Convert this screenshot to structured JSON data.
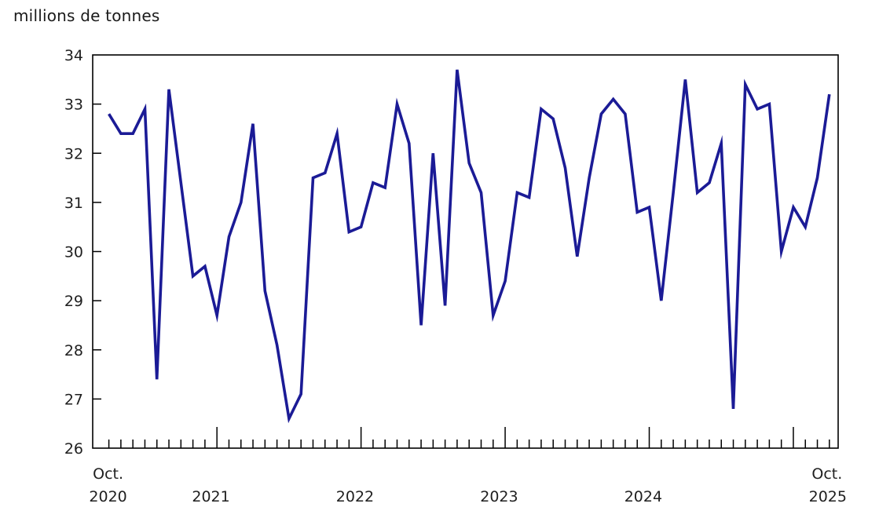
{
  "page": {
    "title": "millions de tonnes"
  },
  "chart_data": {
    "type": "line",
    "title": "millions de tonnes",
    "ylabel": "millions de tonnes",
    "x_range": {
      "start": "oct. 2020",
      "end": "oct. 2025",
      "step": "month"
    },
    "start_label": {
      "month": "Oct.",
      "year": "2020"
    },
    "end_label": {
      "month": "Oct.",
      "year": "2025"
    },
    "mid_year_labels": [
      "2021",
      "2022",
      "2023",
      "2024"
    ],
    "ylim": [
      26,
      34
    ],
    "yticks": [
      26,
      27,
      28,
      29,
      30,
      31,
      32,
      33,
      34
    ],
    "grid": "off",
    "legend": "none",
    "series": [
      {
        "name": "millions de tonnes",
        "start_month": "2020-10",
        "values": [
          32.8,
          32.4,
          32.4,
          32.9,
          27.4,
          33.3,
          31.4,
          29.5,
          29.7,
          28.7,
          30.3,
          31.0,
          32.6,
          29.2,
          28.1,
          26.6,
          27.1,
          31.5,
          31.6,
          32.4,
          30.4,
          30.5,
          31.4,
          31.3,
          33.0,
          32.2,
          28.5,
          32.0,
          28.9,
          33.7,
          31.8,
          31.2,
          28.7,
          29.4,
          31.2,
          31.1,
          32.9,
          32.7,
          31.7,
          29.9,
          31.5,
          32.8,
          33.1,
          32.8,
          30.8,
          30.9,
          29.0,
          31.2,
          33.5,
          31.2,
          31.4,
          32.2,
          26.8,
          33.4,
          32.9,
          33.0,
          30.0,
          30.9,
          30.5,
          31.5,
          33.2
        ]
      }
    ],
    "colors": {
      "line": "#1b1b96",
      "axis": "#000000",
      "text": "#1f1f1f"
    }
  }
}
